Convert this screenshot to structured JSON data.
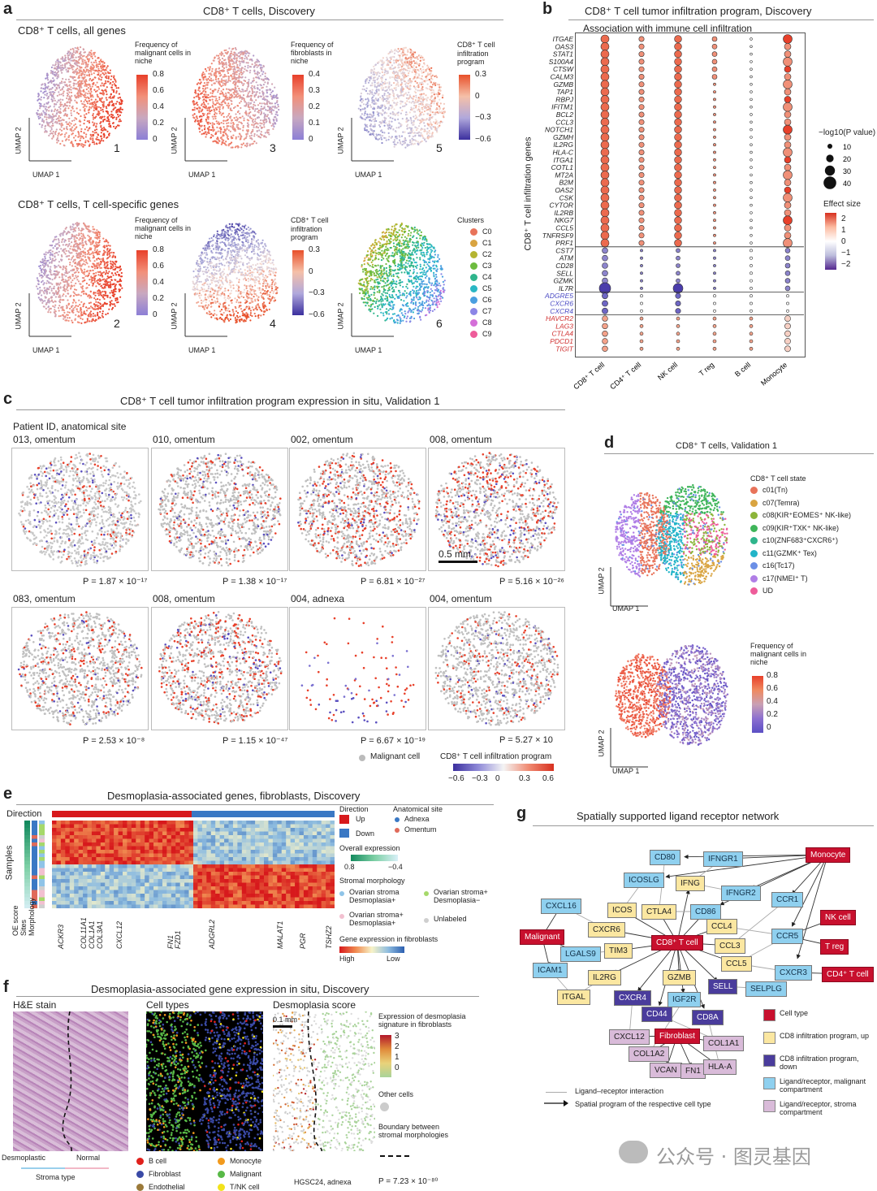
{
  "panels": {
    "a": {
      "label": "a",
      "title": "CD8⁺ T cells, Discovery",
      "row1_title": "CD8⁺ T cells, all genes",
      "row2_title": "CD8⁺ T cells, T cell-specific genes",
      "umap_x": "UMAP 1",
      "umap_y": "UMAP 2",
      "plots": [
        {
          "num": "1",
          "legend": "Frequency of malignant cells in niche",
          "ticks": [
            "0.8",
            "0.6",
            "0.4",
            "0.2",
            "0"
          ]
        },
        {
          "num": "3",
          "legend": "Frequency of fibroblasts in niche",
          "ticks": [
            "0.4",
            "0.3",
            "0.2",
            "0.1",
            "0"
          ]
        },
        {
          "num": "5",
          "legend": "CD8⁺ T cell infiltration program",
          "ticks": [
            "0.3",
            "0",
            "−0.3",
            "−0.6"
          ]
        },
        {
          "num": "2",
          "legend": "Frequency of malignant cells in niche",
          "ticks": [
            "0.8",
            "0.6",
            "0.4",
            "0.2",
            "0"
          ]
        },
        {
          "num": "4",
          "legend": "CD8⁺ T cell infiltration program",
          "ticks": [
            "0.3",
            "0",
            "−0.3",
            "−0.6"
          ]
        },
        {
          "num": "6",
          "legend": "Clusters",
          "ticks": []
        }
      ],
      "clusters": [
        {
          "name": "C0",
          "color": "#e8735a"
        },
        {
          "name": "C1",
          "color": "#d9a441"
        },
        {
          "name": "C2",
          "color": "#b5b531"
        },
        {
          "name": "C3",
          "color": "#6dbb3f"
        },
        {
          "name": "C4",
          "color": "#2fb58c"
        },
        {
          "name": "C5",
          "color": "#2ab7c4"
        },
        {
          "name": "C6",
          "color": "#4a9fe0"
        },
        {
          "name": "C7",
          "color": "#8b86e6"
        },
        {
          "name": "C8",
          "color": "#d46fd8"
        },
        {
          "name": "C9",
          "color": "#ee5c9a"
        }
      ]
    },
    "b": {
      "label": "b",
      "title": "CD8⁺ T cell tumor infiltration program, Discovery",
      "subtitle": "Association with immune cell infiltration",
      "ylabel": "CD8⁺ T cell infiltration genes",
      "size_legend_title": "−log10(P value)",
      "size_legend": [
        "10",
        "20",
        "30",
        "40"
      ],
      "effect_title": "Effect size",
      "effect_ticks": [
        "2",
        "1",
        "0",
        "−1",
        "−2"
      ],
      "columns": [
        "CD8⁺ T cell",
        "CD4⁺ T cell",
        "NK cell",
        "T reg",
        "B cell",
        "Monocyte"
      ],
      "genes_up": [
        "ITGAE",
        "OAS3",
        "STAT1",
        "S100A4",
        "CTSW",
        "CALM3",
        "GZMB",
        "TAP1",
        "RBPJ",
        "IFITM1",
        "BCL2",
        "CCL3",
        "NOTCH1",
        "GZMH",
        "IL2RG",
        "HLA-C",
        "ITGA1",
        "COTL1",
        "MT2A",
        "B2M",
        "OAS2",
        "CSK",
        "CYTOR",
        "IL2RB",
        "NKG7",
        "CCL5",
        "TNFRSF9",
        "PRF1"
      ],
      "genes_down": [
        "CST7",
        "ATM",
        "CD28",
        "SELL",
        "GZMK",
        "IL7R"
      ],
      "genes_blue": [
        "ADGRE5",
        "CXCR6",
        "CXCR4"
      ],
      "genes_red": [
        "HAVCR2",
        "LAG3",
        "CTLA4",
        "PDCD1",
        "TIGIT"
      ]
    },
    "c": {
      "label": "c",
      "title": "CD8⁺ T cell tumor infiltration program expression in situ, Validation 1",
      "header": "Patient ID, anatomical site",
      "cores": [
        {
          "name": "013, omentum",
          "p": "P = 1.87 × 10⁻¹⁷"
        },
        {
          "name": "010, omentum",
          "p": "P = 1.38 × 10⁻¹⁷"
        },
        {
          "name": "002, omentum",
          "p": "P = 6.81 × 10⁻²⁷"
        },
        {
          "name": "008, omentum",
          "p": "P = 5.16 × 10⁻²⁶"
        },
        {
          "name": "083, omentum",
          "p": "P = 2.53 × 10⁻⁸"
        },
        {
          "name": "008, omentum",
          "p": "P = 1.15 × 10⁻⁴⁷"
        },
        {
          "name": "004, adnexa",
          "p": "P = 6.67 × 10⁻¹⁹"
        },
        {
          "name": "004, omentum",
          "p": "P = 5.27 × 10"
        }
      ],
      "scalebar": "0.5 mm",
      "legend_malignant": "Malignant cell",
      "legend_program": "CD8⁺ T cell infiltration program",
      "cbar_ticks": [
        "−0.6",
        "−0.3",
        "0",
        "0.3",
        "0.6"
      ]
    },
    "d": {
      "label": "d",
      "title": "CD8⁺ T cells, Validation 1",
      "state_title": "CD8⁺ T cell state",
      "states": [
        {
          "name": "c01(Tn)",
          "color": "#e8735a"
        },
        {
          "name": "c07(Temra)",
          "color": "#d9a441"
        },
        {
          "name": "c08(KIR⁺EOMES⁺ NK-like)",
          "color": "#8cb53a"
        },
        {
          "name": "c09(KIR⁺TXK⁺ NK-like)",
          "color": "#3fb55a"
        },
        {
          "name": "c10(ZNF683⁺CXCR6⁺)",
          "color": "#2fb58c"
        },
        {
          "name": "c11(GZMK⁺ Tex)",
          "color": "#22b4c8"
        },
        {
          "name": "c16(Tc17)",
          "color": "#6b8fe6"
        },
        {
          "name": "c17(NMEI⁺ T)",
          "color": "#b07ee6"
        },
        {
          "name": "UD",
          "color": "#ee5c9a"
        }
      ],
      "freq_title": "Frequency of malignant cells in niche",
      "freq_ticks": [
        "0.8",
        "0.6",
        "0.4",
        "0.2",
        "0"
      ],
      "umap_x": "UMAP 1",
      "umap_y": "UMAP 2"
    },
    "e": {
      "label": "e",
      "title": "Desmoplasia-associated genes, fibroblasts, Discovery",
      "direction_label": "Direction",
      "samples_label": "Samples",
      "row_labels": [
        "OE score",
        "Sites",
        "Morphology"
      ],
      "genes": [
        "ACKR3",
        "COL11A1",
        "COL1A1",
        "COL3A1",
        "CXCL12",
        "FN1",
        "FZD1",
        "ADGRL2",
        "MALAT1",
        "PGR",
        "TSHZ2"
      ],
      "legend": {
        "direction": "Direction",
        "up": "Up",
        "down": "Down",
        "site": "Anatomical site",
        "adnexa": "Adnexa",
        "omentum": "Omentum",
        "overall": "Overall expression",
        "overall_ticks": [
          "0.8",
          "−0.4"
        ],
        "stromal": "Stromal morphology",
        "m1": "Ovarian stroma Desmoplasia+",
        "m2": "Ovarian stroma+ Desmoplasia−",
        "m3": "Ovarian stroma+ Desmoplasia+",
        "m4": "Unlabeled",
        "gene_expr": "Gene expression in fibroblasts",
        "high": "High",
        "low": "Low"
      }
    },
    "f": {
      "label": "f",
      "title": "Desmoplasia-associated gene expression in situ, Discovery",
      "he": "H&E stain",
      "celltypes": "Cell types",
      "dscore": "Desmoplasia score",
      "desmo": "Desmoplastic",
      "normal": "Normal",
      "stroma_type": "Stroma type",
      "scalebar": "0.1 mm",
      "expr_title": "Expression of desmoplasia signature in fibroblasts",
      "expr_ticks": [
        "3",
        "2",
        "1",
        "0"
      ],
      "other_cells": "Other cells",
      "boundary": "Boundary between stromal morphologies",
      "sample": "HGSC24, adnexa",
      "p": "P = 7.23 × 10⁻⁸⁰",
      "types": [
        {
          "name": "B cell",
          "color": "#e0201b"
        },
        {
          "name": "Monocyte",
          "color": "#f29a1d"
        },
        {
          "name": "Fibroblast",
          "color": "#3a4aa6"
        },
        {
          "name": "Malignant",
          "color": "#58b947"
        },
        {
          "name": "Endothelial",
          "color": "#9b7a3a"
        },
        {
          "name": "T/NK cell",
          "color": "#f2e21b"
        }
      ]
    },
    "g": {
      "label": "g",
      "title": "Spatially supported ligand receptor network",
      "legend": [
        {
          "name": "Cell type",
          "color": "#c8102e"
        },
        {
          "name": "CD8 infiltration program, up",
          "color": "#fbe7a1"
        },
        {
          "name": "CD8 infiltration program, down",
          "color": "#4a3c9c"
        },
        {
          "name": "Ligand/receptor, malignant compartment",
          "color": "#8fd0ef"
        },
        {
          "name": "Ligand/receptor, stroma compartment",
          "color": "#d9bbd9"
        }
      ],
      "edge1": "Ligand–receptor interaction",
      "edge2": "Spatial program of the respective cell type",
      "nodes": {
        "monocyte": "Monocyte",
        "cd80": "CD80",
        "ifngr1": "IFNGR1",
        "icoslg": "ICOSLG",
        "ifng": "IFNG",
        "ifngr2": "IFNGR2",
        "ccr1": "CCR1",
        "cxcl16": "CXCL16",
        "icos": "ICOS",
        "ctla4": "CTLA4",
        "cd86": "CD86",
        "nkcell": "NK cell",
        "cxcr6": "CXCR6",
        "ccl4": "CCL4",
        "malignant": "Malignant",
        "ccr5": "CCR5",
        "treg": "T reg",
        "lgals9": "LGALS9",
        "tim3": "TIM3",
        "cd8t": "CD8⁺ T cell",
        "ccl3": "CCL3",
        "ccl5": "CCL5",
        "icam1": "ICAM1",
        "il2rg": "IL2RG",
        "gzmb": "GZMB",
        "cxcr3": "CXCR3",
        "cd4t": "CD4⁺ T cell",
        "sell": "SELL",
        "selplg": "SELPLG",
        "itgal": "ITGAL",
        "cxcr4": "CXCR4",
        "igf2r": "IGF2R",
        "cd44": "CD44",
        "cd8a": "CD8A",
        "cxcl12": "CXCL12",
        "fibroblast": "Fibroblast",
        "col1a1": "COL1A1",
        "col1a2": "COL1A2",
        "vcan": "VCAN",
        "fn1": "FN1",
        "hlaa": "HLA-A"
      }
    }
  },
  "watermark": "公众号 · 图灵基因"
}
